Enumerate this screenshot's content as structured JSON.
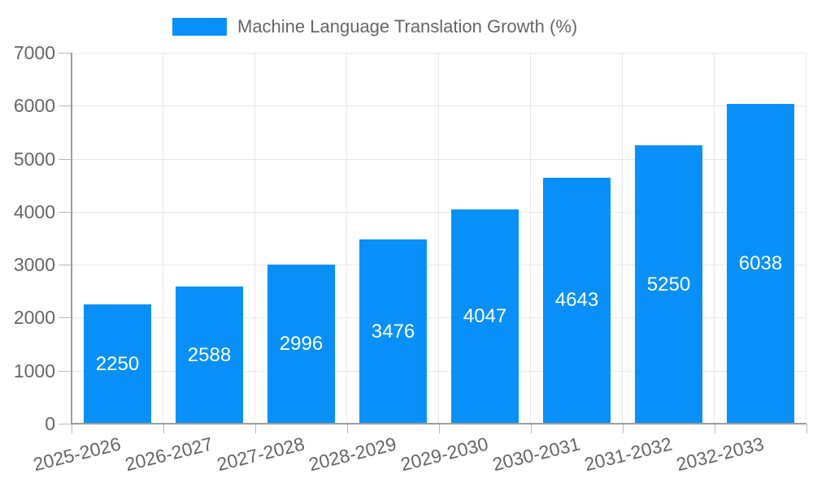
{
  "legend": {
    "label": "Machine Language Translation Growth (%)"
  },
  "chart_data": {
    "type": "bar",
    "title": "Machine Language Translation Growth (%)",
    "categories": [
      "2025-2026",
      "2026-2027",
      "2027-2028",
      "2028-2029",
      "2029-2030",
      "2030-2031",
      "2031-2032",
      "2032-2033"
    ],
    "values": [
      2250,
      2588,
      2996,
      3476,
      4047,
      4643,
      5250,
      6038
    ],
    "xlabel": "",
    "ylabel": "",
    "ylim": [
      0,
      7000
    ],
    "yticks": [
      0,
      1000,
      2000,
      3000,
      4000,
      5000,
      6000,
      7000
    ],
    "grid": true,
    "legend_position": "top",
    "bar_color": "#0890f8",
    "value_label_color": "#ffffff",
    "axis_text_color": "#666666",
    "grid_color": "#e8e8e8",
    "axis_line_color": "#9e9e9e",
    "tick_color": "#b8b8b8"
  }
}
